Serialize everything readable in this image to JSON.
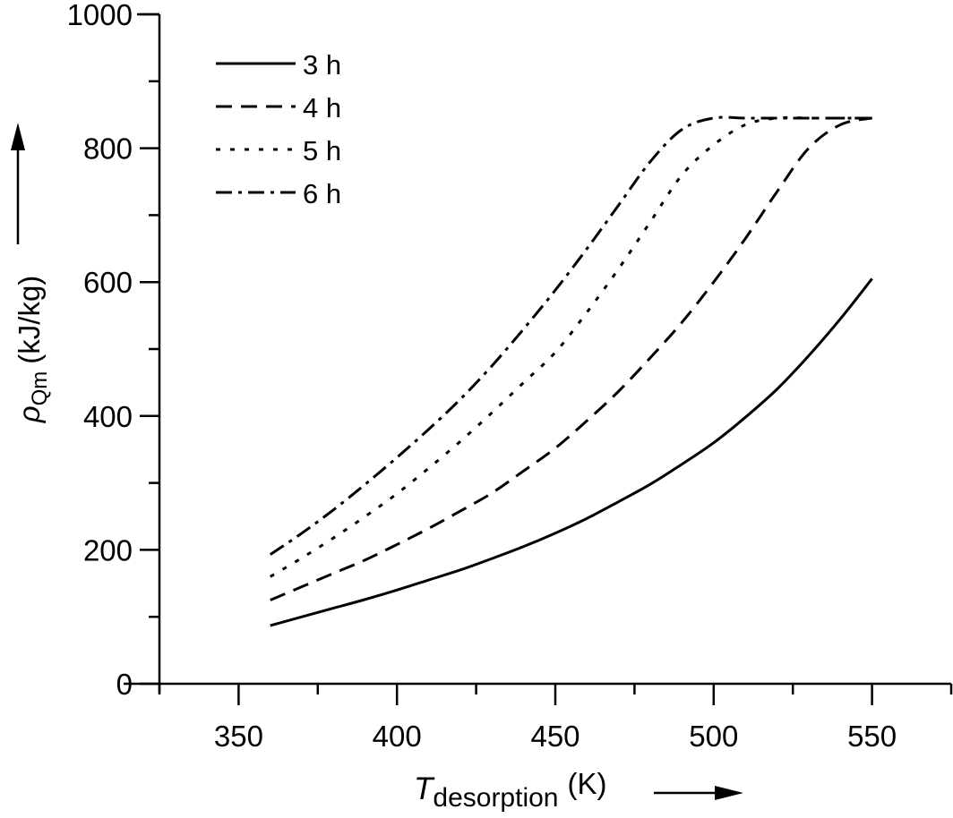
{
  "chart_data": {
    "type": "line",
    "title": "",
    "xlabel": "T_desorption (K)",
    "ylabel": "ρ_Qm (kJ/kg)",
    "xlabel_parts": {
      "symbol": "T",
      "subscript": "desorption",
      "unit": "(K)"
    },
    "ylabel_parts": {
      "symbol": "ρ",
      "subscript": "Qm",
      "unit": "(kJ/kg)"
    },
    "xlim": [
      325,
      575
    ],
    "ylim": [
      0,
      1000
    ],
    "xticks": [
      350,
      400,
      450,
      500,
      550
    ],
    "yticks": [
      0,
      200,
      400,
      600,
      800,
      1000
    ],
    "x_minor_step": 25,
    "y_minor_step": 100,
    "grid": false,
    "legend_position": "upper left",
    "x": [
      360,
      370,
      380,
      390,
      400,
      410,
      420,
      430,
      440,
      450,
      460,
      470,
      480,
      490,
      500,
      510,
      520,
      530,
      540,
      550
    ],
    "series": [
      {
        "name": "3 h",
        "style": "solid",
        "values": [
          87,
          100,
          113,
          126,
          140,
          155,
          170,
          187,
          205,
          225,
          247,
          272,
          298,
          328,
          360,
          398,
          440,
          490,
          545,
          605
        ]
      },
      {
        "name": "4 h",
        "style": "dash",
        "values": [
          125,
          145,
          165,
          185,
          208,
          232,
          258,
          285,
          318,
          352,
          393,
          437,
          487,
          540,
          600,
          665,
          735,
          800,
          835,
          845
        ]
      },
      {
        "name": "5 h",
        "style": "dot",
        "values": [
          160,
          188,
          218,
          250,
          284,
          322,
          362,
          405,
          450,
          495,
          555,
          620,
          690,
          760,
          805,
          835,
          845,
          845,
          845,
          845
        ]
      },
      {
        "name": "6 h",
        "style": "dashdot",
        "values": [
          193,
          225,
          260,
          298,
          338,
          380,
          425,
          475,
          530,
          588,
          650,
          715,
          780,
          828,
          845,
          845,
          845,
          845,
          845,
          845
        ]
      }
    ]
  },
  "legend": {
    "items": [
      {
        "label": "3 h"
      },
      {
        "label": "4 h"
      },
      {
        "label": "5 h"
      },
      {
        "label": "6 h"
      }
    ]
  },
  "axes": {
    "x_title_symbol": "T",
    "x_title_sub": "desorption",
    "x_title_unit": "(K)",
    "y_title_symbol": "ρ",
    "y_title_sub": "Qm",
    "y_title_unit": "(kJ/kg)"
  },
  "colors": {
    "line": "#000000",
    "background": "#ffffff"
  }
}
